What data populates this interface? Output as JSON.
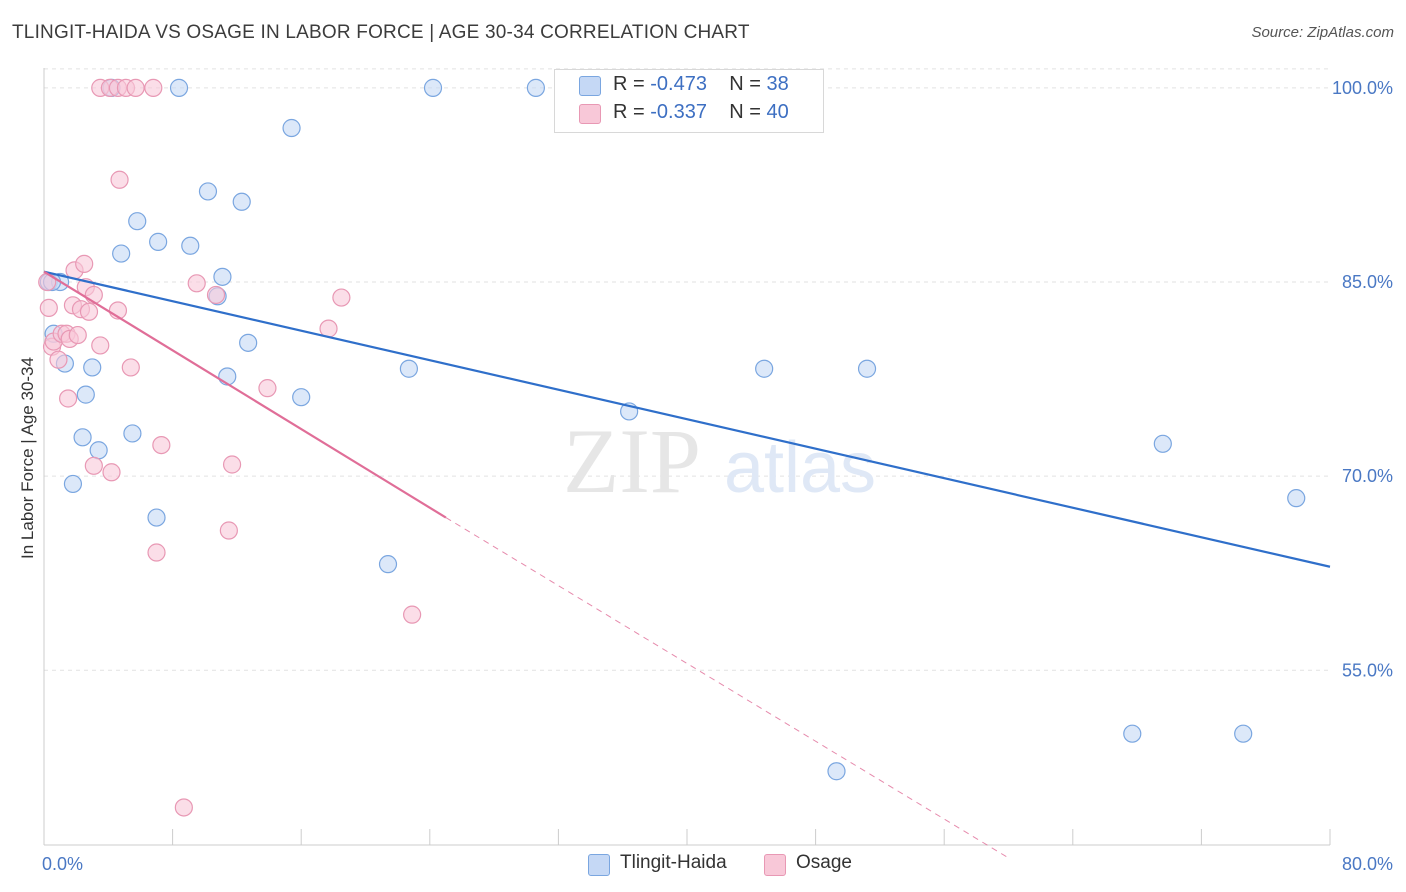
{
  "title": "TLINGIT-HAIDA VS OSAGE IN LABOR FORCE | AGE 30-34 CORRELATION CHART",
  "source": "Source: ZipAtlas.com",
  "watermark": {
    "zip": "ZIP",
    "atlas": "atlas"
  },
  "colors": {
    "blue_fill": "#c5d8f5",
    "blue_stroke": "#7aa6e0",
    "blue_line": "#2f6fca",
    "pink_fill": "#f8c8d8",
    "pink_stroke": "#e898b4",
    "pink_line": "#e06e98",
    "tick_text": "#4a78c4",
    "grid": "#e2e2e2"
  },
  "legend": {
    "rows": [
      {
        "r_label": "R = ",
        "r_value": "-0.473",
        "n_label": "N = ",
        "n_value": "38"
      },
      {
        "r_label": "R = ",
        "r_value": "-0.337",
        "n_label": "N = ",
        "n_value": "40"
      }
    ]
  },
  "chart_data": {
    "type": "scatter",
    "title": "TLINGIT-HAIDA VS OSAGE IN LABOR FORCE | AGE 30-34 CORRELATION CHART",
    "xlabel": "",
    "ylabel": "In Labor Force | Age 30-34",
    "xlim": [
      0,
      80
    ],
    "ylim": [
      41.5,
      102
    ],
    "x_tick_labels": [
      "0.0%",
      "80.0%"
    ],
    "y_ticks": [
      55,
      70,
      85,
      100
    ],
    "y_tick_labels": [
      "55.0%",
      "70.0%",
      "85.0%",
      "100.0%"
    ],
    "grid": true,
    "legend_position": "top-center",
    "series": [
      {
        "name": "Tlingit-Haida",
        "points": [
          [
            0.3,
            85.0
          ],
          [
            1.0,
            85.0
          ],
          [
            0.6,
            81.0
          ],
          [
            1.3,
            78.7
          ],
          [
            3.0,
            78.4
          ],
          [
            2.6,
            76.3
          ],
          [
            2.4,
            73.0
          ],
          [
            3.4,
            72.0
          ],
          [
            1.8,
            69.4
          ],
          [
            4.8,
            87.2
          ],
          [
            5.5,
            73.3
          ],
          [
            5.8,
            89.7
          ],
          [
            7.1,
            88.1
          ],
          [
            7.0,
            66.8
          ],
          [
            4.2,
            100.0
          ],
          [
            8.4,
            100.0
          ],
          [
            9.1,
            87.8
          ],
          [
            10.2,
            92.0
          ],
          [
            10.8,
            83.9
          ],
          [
            11.1,
            85.4
          ],
          [
            11.4,
            77.7
          ],
          [
            12.3,
            91.2
          ],
          [
            12.7,
            80.3
          ],
          [
            15.4,
            96.9
          ],
          [
            16.0,
            76.1
          ],
          [
            21.4,
            63.2
          ],
          [
            22.7,
            78.3
          ],
          [
            24.2,
            100.0
          ],
          [
            30.6,
            100.0
          ],
          [
            36.4,
            75.0
          ],
          [
            44.8,
            78.3
          ],
          [
            51.2,
            78.3
          ],
          [
            49.3,
            47.2
          ],
          [
            67.7,
            50.1
          ],
          [
            69.6,
            72.5
          ],
          [
            74.6,
            50.1
          ],
          [
            77.9,
            68.3
          ],
          [
            0.5,
            85.0
          ]
        ],
        "trend": {
          "x": [
            0,
            80
          ],
          "y": [
            85.8,
            63.0
          ]
        }
      },
      {
        "name": "Osage",
        "points": [
          [
            0.2,
            85.0
          ],
          [
            0.3,
            83.0
          ],
          [
            0.5,
            80.0
          ],
          [
            0.6,
            80.4
          ],
          [
            0.9,
            79.0
          ],
          [
            1.1,
            81.0
          ],
          [
            1.4,
            81.0
          ],
          [
            1.5,
            76.0
          ],
          [
            1.6,
            80.6
          ],
          [
            1.9,
            85.9
          ],
          [
            1.8,
            83.2
          ],
          [
            2.1,
            80.9
          ],
          [
            2.3,
            82.9
          ],
          [
            2.5,
            86.4
          ],
          [
            2.6,
            84.6
          ],
          [
            2.8,
            82.7
          ],
          [
            3.1,
            84.0
          ],
          [
            3.1,
            70.8
          ],
          [
            3.5,
            80.1
          ],
          [
            4.2,
            70.3
          ],
          [
            4.6,
            82.8
          ],
          [
            3.5,
            100.0
          ],
          [
            4.1,
            100.0
          ],
          [
            4.6,
            100.0
          ],
          [
            5.1,
            100.0
          ],
          [
            5.7,
            100.0
          ],
          [
            4.7,
            92.9
          ],
          [
            5.4,
            78.4
          ],
          [
            6.8,
            100.0
          ],
          [
            7.0,
            64.1
          ],
          [
            7.3,
            72.4
          ],
          [
            9.5,
            84.9
          ],
          [
            10.7,
            84.0
          ],
          [
            11.5,
            65.8
          ],
          [
            11.7,
            70.9
          ],
          [
            13.9,
            76.8
          ],
          [
            17.7,
            81.4
          ],
          [
            18.5,
            83.8
          ],
          [
            22.9,
            59.3
          ],
          [
            8.7,
            44.4
          ]
        ],
        "trend": {
          "x": [
            0,
            25
          ],
          "y": [
            85.8,
            66.8
          ]
        },
        "trend_dashed": {
          "x": [
            25,
            60
          ],
          "y": [
            66.8,
            40.5
          ]
        }
      }
    ]
  }
}
